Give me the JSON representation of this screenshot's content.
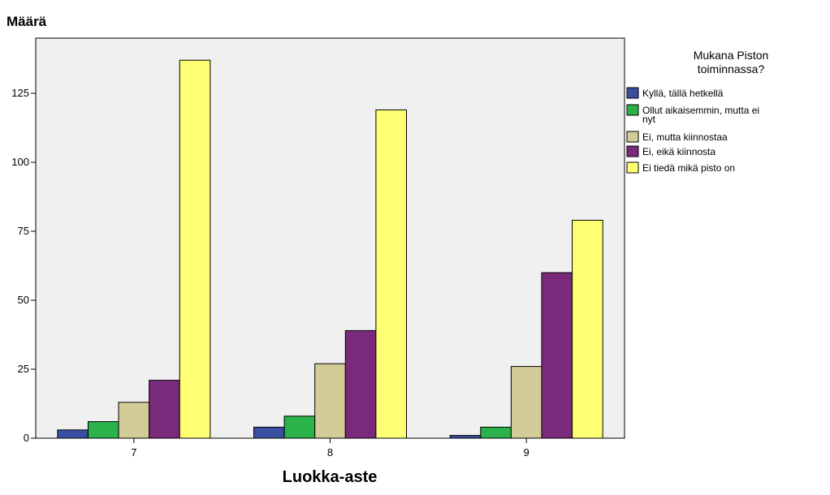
{
  "chart_data": {
    "type": "bar",
    "ylabel": "Määrä",
    "xlabel": "Luokka-aste",
    "categories": [
      "7",
      "8",
      "9"
    ],
    "ylim": [
      0,
      145
    ],
    "yticks": [
      0,
      25,
      50,
      75,
      100,
      125
    ],
    "grid": false,
    "legend": {
      "title_lines": [
        "Mukana Piston",
        "toiminnassa?"
      ],
      "placement": "right-top"
    },
    "series": [
      {
        "name_lines": [
          "Kyllä, tällä hetkellä"
        ],
        "color": "#3a4fa0",
        "values": [
          3,
          4,
          1
        ]
      },
      {
        "name_lines": [
          "Ollut aikaisemmin, mutta ei",
          "nyt"
        ],
        "color": "#2bb24a",
        "values": [
          6,
          8,
          4
        ]
      },
      {
        "name_lines": [
          "Ei, mutta kiinnostaa"
        ],
        "color": "#d4cc98",
        "values": [
          13,
          27,
          26
        ]
      },
      {
        "name_lines": [
          "Ei, eikä kiinnosta"
        ],
        "color": "#7a2a7a",
        "values": [
          21,
          39,
          60
        ]
      },
      {
        "name_lines": [
          "Ei tiedä mikä pisto on"
        ],
        "color": "#ffff73",
        "values": [
          137,
          119,
          79
        ]
      }
    ]
  }
}
